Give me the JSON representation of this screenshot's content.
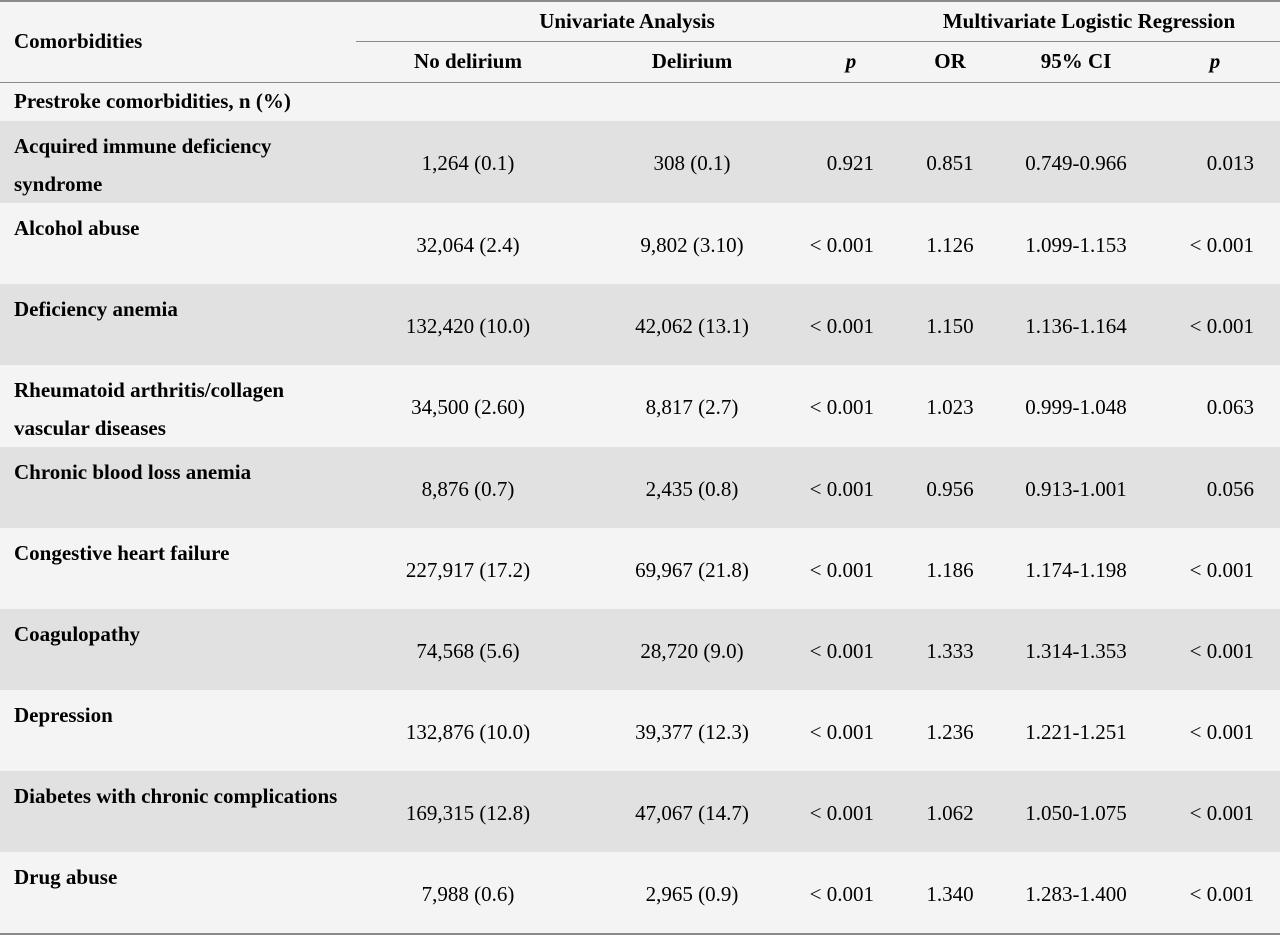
{
  "header": {
    "comorbidities": "Comorbidities",
    "univariate": "Univariate Analysis",
    "multivariate": "Multivariate Logistic Regression",
    "no_delirium": "No delirium",
    "delirium": "Delirium",
    "p_uni": "p",
    "or": "OR",
    "ci": "95% CI",
    "p_multi": "p"
  },
  "section_label": "Prestroke comorbidities, n (%)",
  "rows": [
    {
      "name": "Acquired immune deficiency syndrome",
      "no_delirium": "1,264 (0.1)",
      "delirium": "308 (0.1)",
      "p_uni": "0.921",
      "or": "0.851",
      "ci": "0.749-0.966",
      "p_multi": "0.013"
    },
    {
      "name": "Alcohol abuse",
      "no_delirium": "32,064 (2.4)",
      "delirium": "9,802 (3.10)",
      "p_uni": "< 0.001",
      "or": "1.126",
      "ci": "1.099-1.153",
      "p_multi": "< 0.001"
    },
    {
      "name": "Deficiency anemia",
      "no_delirium": "132,420 (10.0)",
      "delirium": "42,062 (13.1)",
      "p_uni": "< 0.001",
      "or": "1.150",
      "ci": "1.136-1.164",
      "p_multi": "< 0.001"
    },
    {
      "name": "Rheumatoid arthritis/collagen vascular diseases",
      "no_delirium": "34,500 (2.60)",
      "delirium": "8,817 (2.7)",
      "p_uni": "< 0.001",
      "or": "1.023",
      "ci": "0.999-1.048",
      "p_multi": "0.063"
    },
    {
      "name": "Chronic blood loss anemia",
      "no_delirium": "8,876 (0.7)",
      "delirium": "2,435 (0.8)",
      "p_uni": "< 0.001",
      "or": "0.956",
      "ci": "0.913-1.001",
      "p_multi": "0.056"
    },
    {
      "name": "Congestive heart failure",
      "no_delirium": "227,917 (17.2)",
      "delirium": "69,967 (21.8)",
      "p_uni": "< 0.001",
      "or": "1.186",
      "ci": "1.174-1.198",
      "p_multi": "< 0.001"
    },
    {
      "name": "Coagulopathy",
      "no_delirium": "74,568 (5.6)",
      "delirium": "28,720 (9.0)",
      "p_uni": "< 0.001",
      "or": "1.333",
      "ci": "1.314-1.353",
      "p_multi": "< 0.001"
    },
    {
      "name": "Depression",
      "no_delirium": "132,876 (10.0)",
      "delirium": "39,377 (12.3)",
      "p_uni": "< 0.001",
      "or": "1.236",
      "ci": "1.221-1.251",
      "p_multi": "< 0.001"
    },
    {
      "name": "Diabetes with chronic complications",
      "no_delirium": "169,315 (12.8)",
      "delirium": "47,067 (14.7)",
      "p_uni": "< 0.001",
      "or": "1.062",
      "ci": "1.050-1.075",
      "p_multi": "< 0.001"
    },
    {
      "name": "Drug abuse",
      "no_delirium": "7,988 (0.6)",
      "delirium": "2,965 (0.9)",
      "p_uni": "< 0.001",
      "or": "1.340",
      "ci": "1.283-1.400",
      "p_multi": "< 0.001"
    }
  ]
}
